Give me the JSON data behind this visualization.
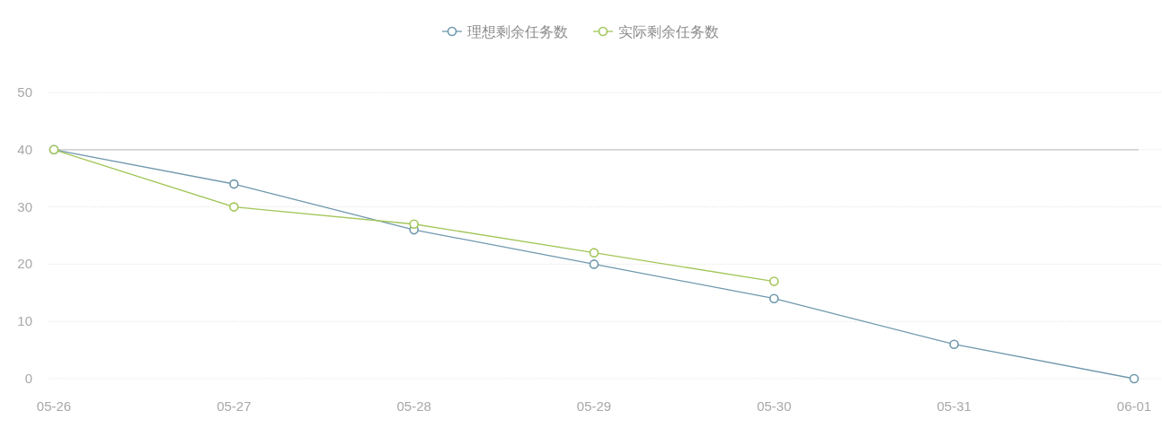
{
  "chart_data": {
    "type": "line",
    "categories": [
      "05-26",
      "05-27",
      "05-28",
      "05-29",
      "05-30",
      "05-31",
      "06-01"
    ],
    "series": [
      {
        "name": "理想剩余任务数",
        "color": "#6f98ad",
        "values": [
          40,
          34,
          26,
          20,
          14,
          6,
          0
        ]
      },
      {
        "name": "实际剩余任务数",
        "color": "#a3c65a",
        "values": [
          40,
          30,
          27,
          22,
          17,
          null,
          null
        ]
      }
    ],
    "ylim": [
      0,
      50
    ],
    "yticks": [
      0,
      10,
      20,
      30,
      40,
      50
    ],
    "grid": "y",
    "legend": "top",
    "marker": "circle",
    "line_style": "solid",
    "ref_lines": [
      {
        "axis": "y",
        "value": 40,
        "color": "#c4c4c4"
      }
    ]
  }
}
